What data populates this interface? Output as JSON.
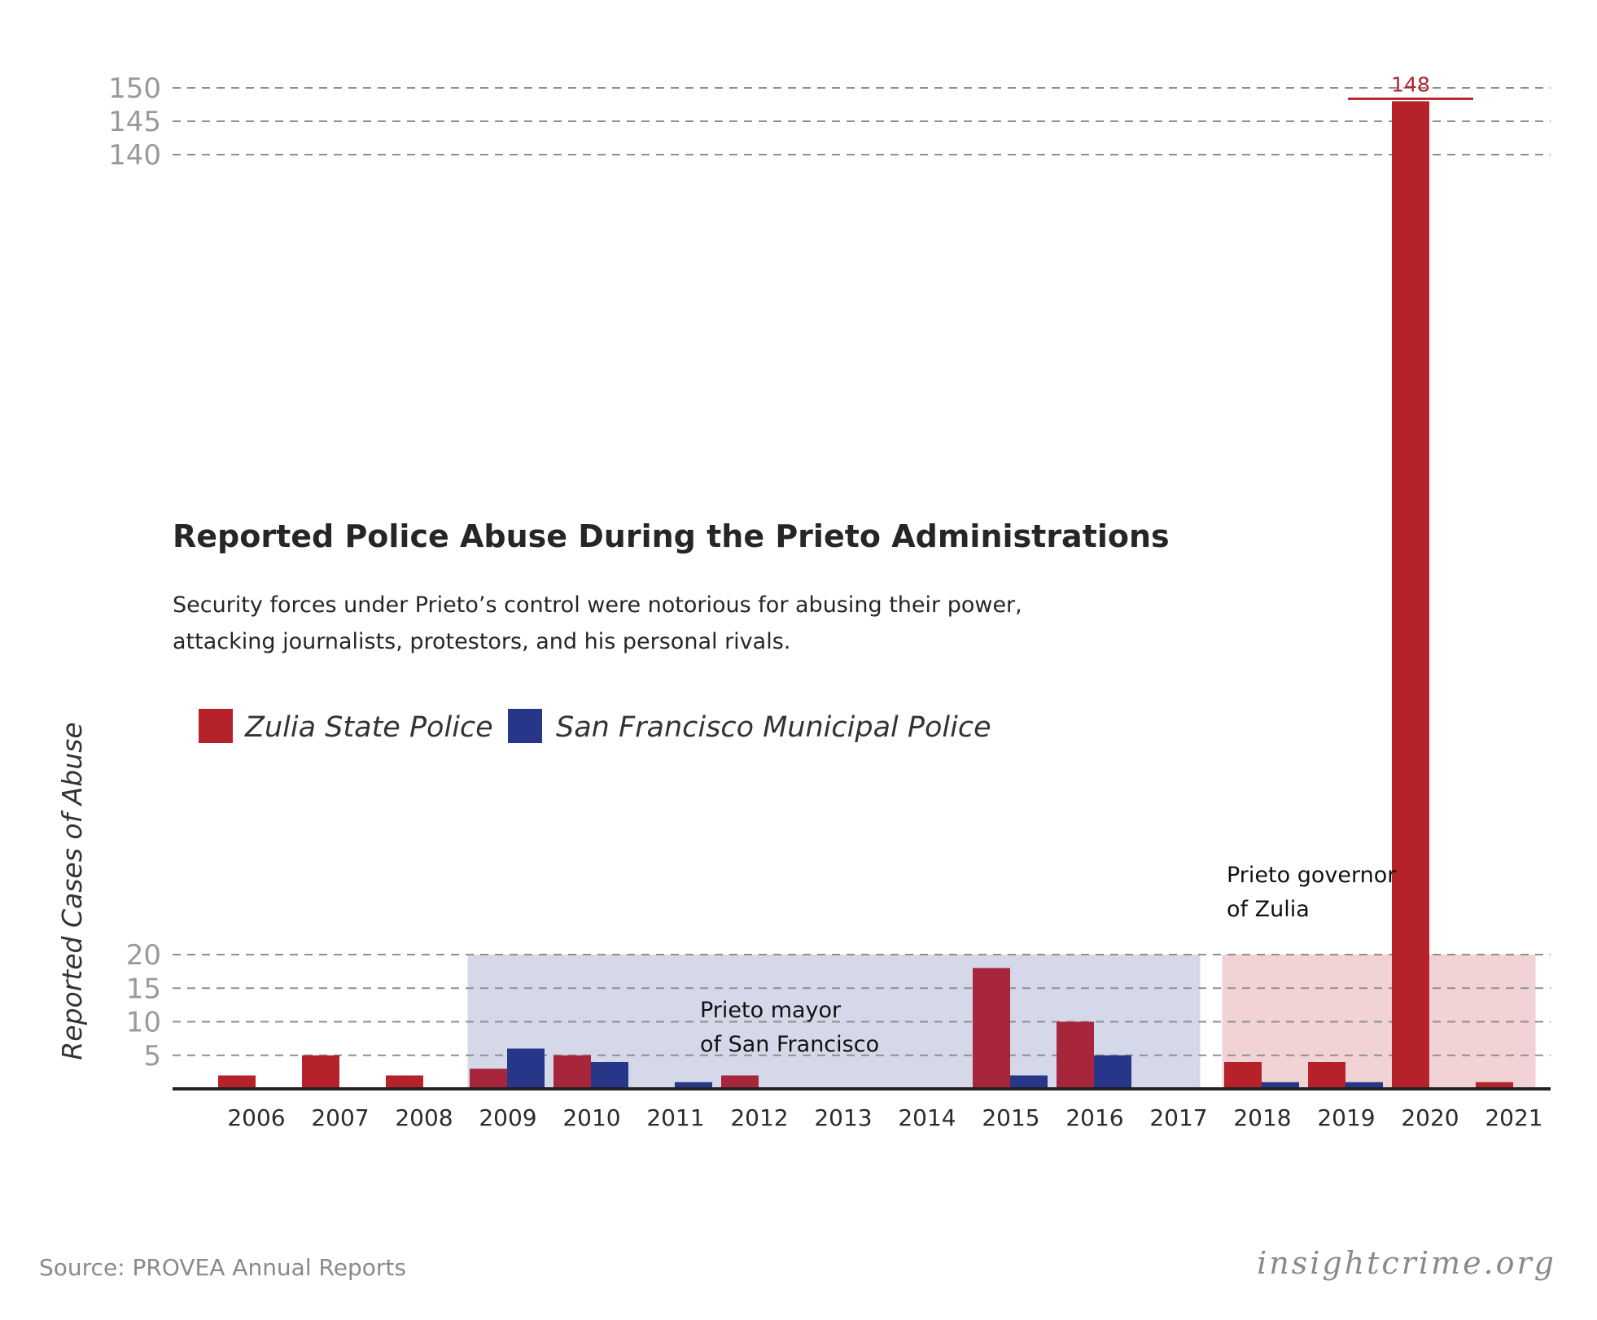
{
  "chart_data": {
    "type": "bar",
    "title": "Reported Police Abuse During the Prieto Administrations",
    "subtitle_lines": [
      "Security forces under Prieto’s control were notorious for abusing their power,",
      "attacking journalists, protestors, and his personal rivals."
    ],
    "ylabel": "Reported Cases of Abuse",
    "categories": [
      "2006",
      "2007",
      "2008",
      "2009",
      "2010",
      "2011",
      "2012",
      "2013",
      "2014",
      "2015",
      "2016",
      "2017",
      "2018",
      "2019",
      "2020",
      "2021"
    ],
    "series": [
      {
        "name": "Zulia State Police",
        "color": "#b5222a",
        "values": [
          2,
          5,
          2,
          3,
          5,
          0,
          2,
          0,
          0,
          18,
          10,
          0,
          4,
          4,
          148,
          1
        ]
      },
      {
        "name": "San Francisco Municipal Police",
        "color": "#28368a",
        "values": [
          0,
          0,
          0,
          6,
          4,
          1,
          0,
          0,
          0,
          2,
          5,
          0,
          1,
          1,
          0,
          0
        ]
      }
    ],
    "y_axis_lower": {
      "range": [
        0,
        20
      ],
      "ticks": [
        "5",
        "10",
        "15",
        "20"
      ]
    },
    "y_axis_upper": {
      "range": [
        140,
        150
      ],
      "ticks": [
        "140",
        "145",
        "150"
      ]
    },
    "data_labels": [
      {
        "category": "2020",
        "series": "Zulia State Police",
        "text": "148"
      }
    ],
    "shaded_periods": [
      {
        "label_lines": [
          "Prieto mayor",
          "of San Francisco"
        ],
        "start": "2009",
        "end": "2017",
        "color": "#d4d8e8"
      },
      {
        "label_lines": [
          "Prieto governor",
          "of Zulia"
        ],
        "start": "2018",
        "end": "2021",
        "color": "#f1d3d5"
      }
    ],
    "grid": true,
    "legend_position": "top-left"
  },
  "footer": {
    "source": "Source: PROVEA Annual Reports",
    "brand": "insightcrime.org"
  }
}
